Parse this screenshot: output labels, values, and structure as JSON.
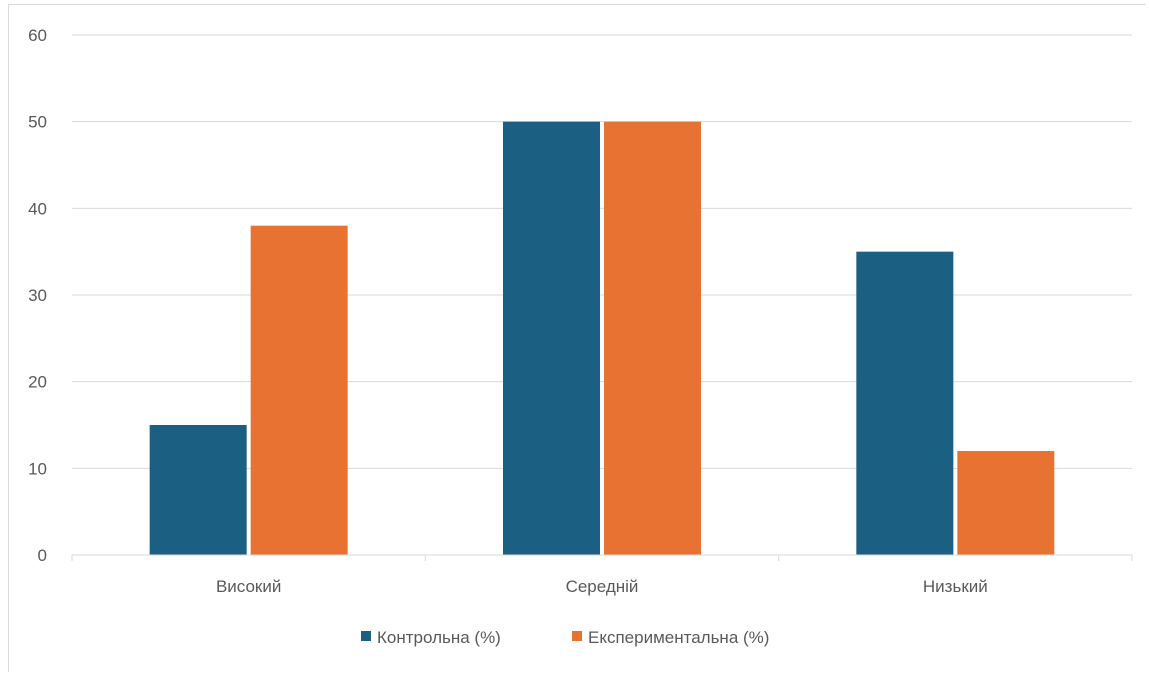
{
  "chart_data": {
    "type": "bar",
    "title": "",
    "xlabel": "",
    "ylabel": "",
    "categories": [
      "Високий",
      "Середній",
      "Низький"
    ],
    "series": [
      {
        "name": "Контрольна (%)",
        "values": [
          15,
          50,
          35
        ],
        "color": "#1b5f82"
      },
      {
        "name": "Експериментальна (%)",
        "values": [
          38,
          50,
          12
        ],
        "color": "#e87232"
      }
    ],
    "ylim": [
      0,
      60
    ],
    "yticks": [
      0,
      10,
      20,
      30,
      40,
      50,
      60
    ],
    "grid": true,
    "legend_position": "bottom"
  }
}
